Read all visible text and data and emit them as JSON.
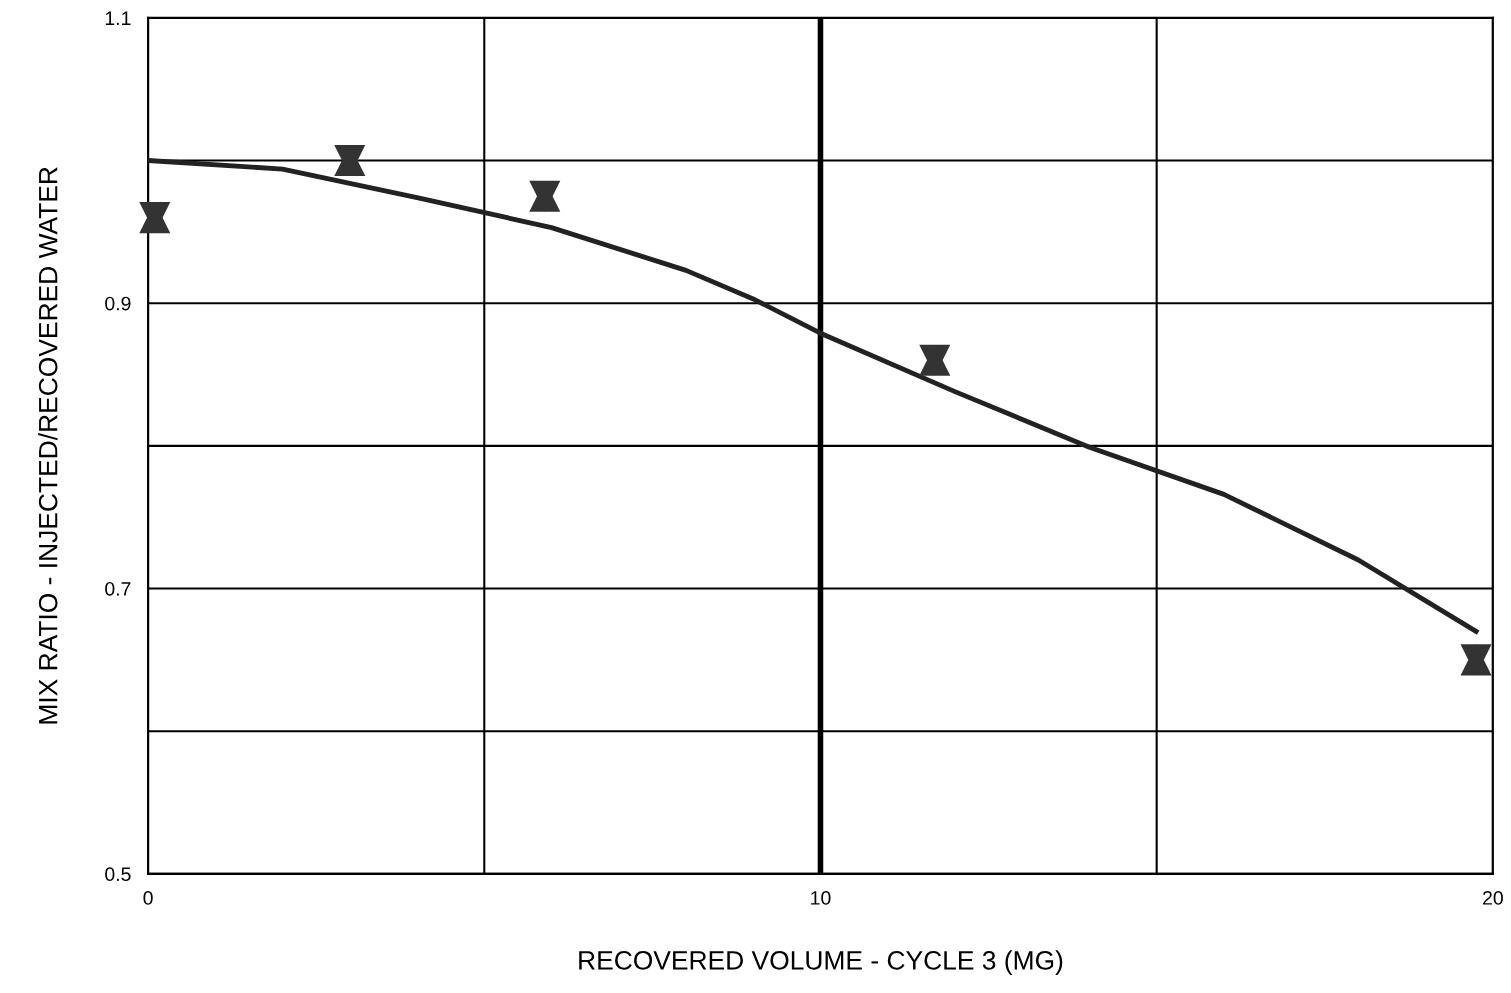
{
  "chart_data": {
    "type": "scatter",
    "xlabel": "RECOVERED VOLUME - CYCLE 3 (MG)",
    "ylabel": "MIX RATIO - INJECTED/RECOVERED WATER",
    "xlim": [
      0,
      20
    ],
    "ylim": [
      0.5,
      1.1
    ],
    "xticks": [
      0,
      {
        "value": 5,
        "label": null
      },
      10,
      {
        "value": 15,
        "label": null
      },
      20
    ],
    "yticks": [
      0.5,
      {
        "value": 0.6,
        "label": null
      },
      0.7,
      {
        "value": 0.8,
        "label": null
      },
      0.9,
      {
        "value": 1.0,
        "label": null
      },
      1.1
    ],
    "grid": true,
    "ref_lines": [
      {
        "axis": "x",
        "value": 10,
        "color": "#000000"
      }
    ],
    "series": [
      {
        "color": "#333333",
        "marker": "triangle",
        "x": [
          0.1,
          3.0,
          5.9,
          11.7,
          19.75
        ],
        "values": [
          0.96,
          1.0,
          0.975,
          0.86,
          0.65
        ]
      },
      {
        "type": "line",
        "color": "#222222",
        "line_style": "solid",
        "marker": "none",
        "x": [
          0,
          2,
          4,
          6,
          8,
          9,
          10,
          12,
          14,
          16,
          18,
          19.75
        ],
        "values": [
          1.0,
          0.994,
          0.974,
          0.953,
          0.923,
          0.903,
          0.879,
          0.838,
          0.799,
          0.766,
          0.72,
          0.67
        ]
      }
    ]
  }
}
